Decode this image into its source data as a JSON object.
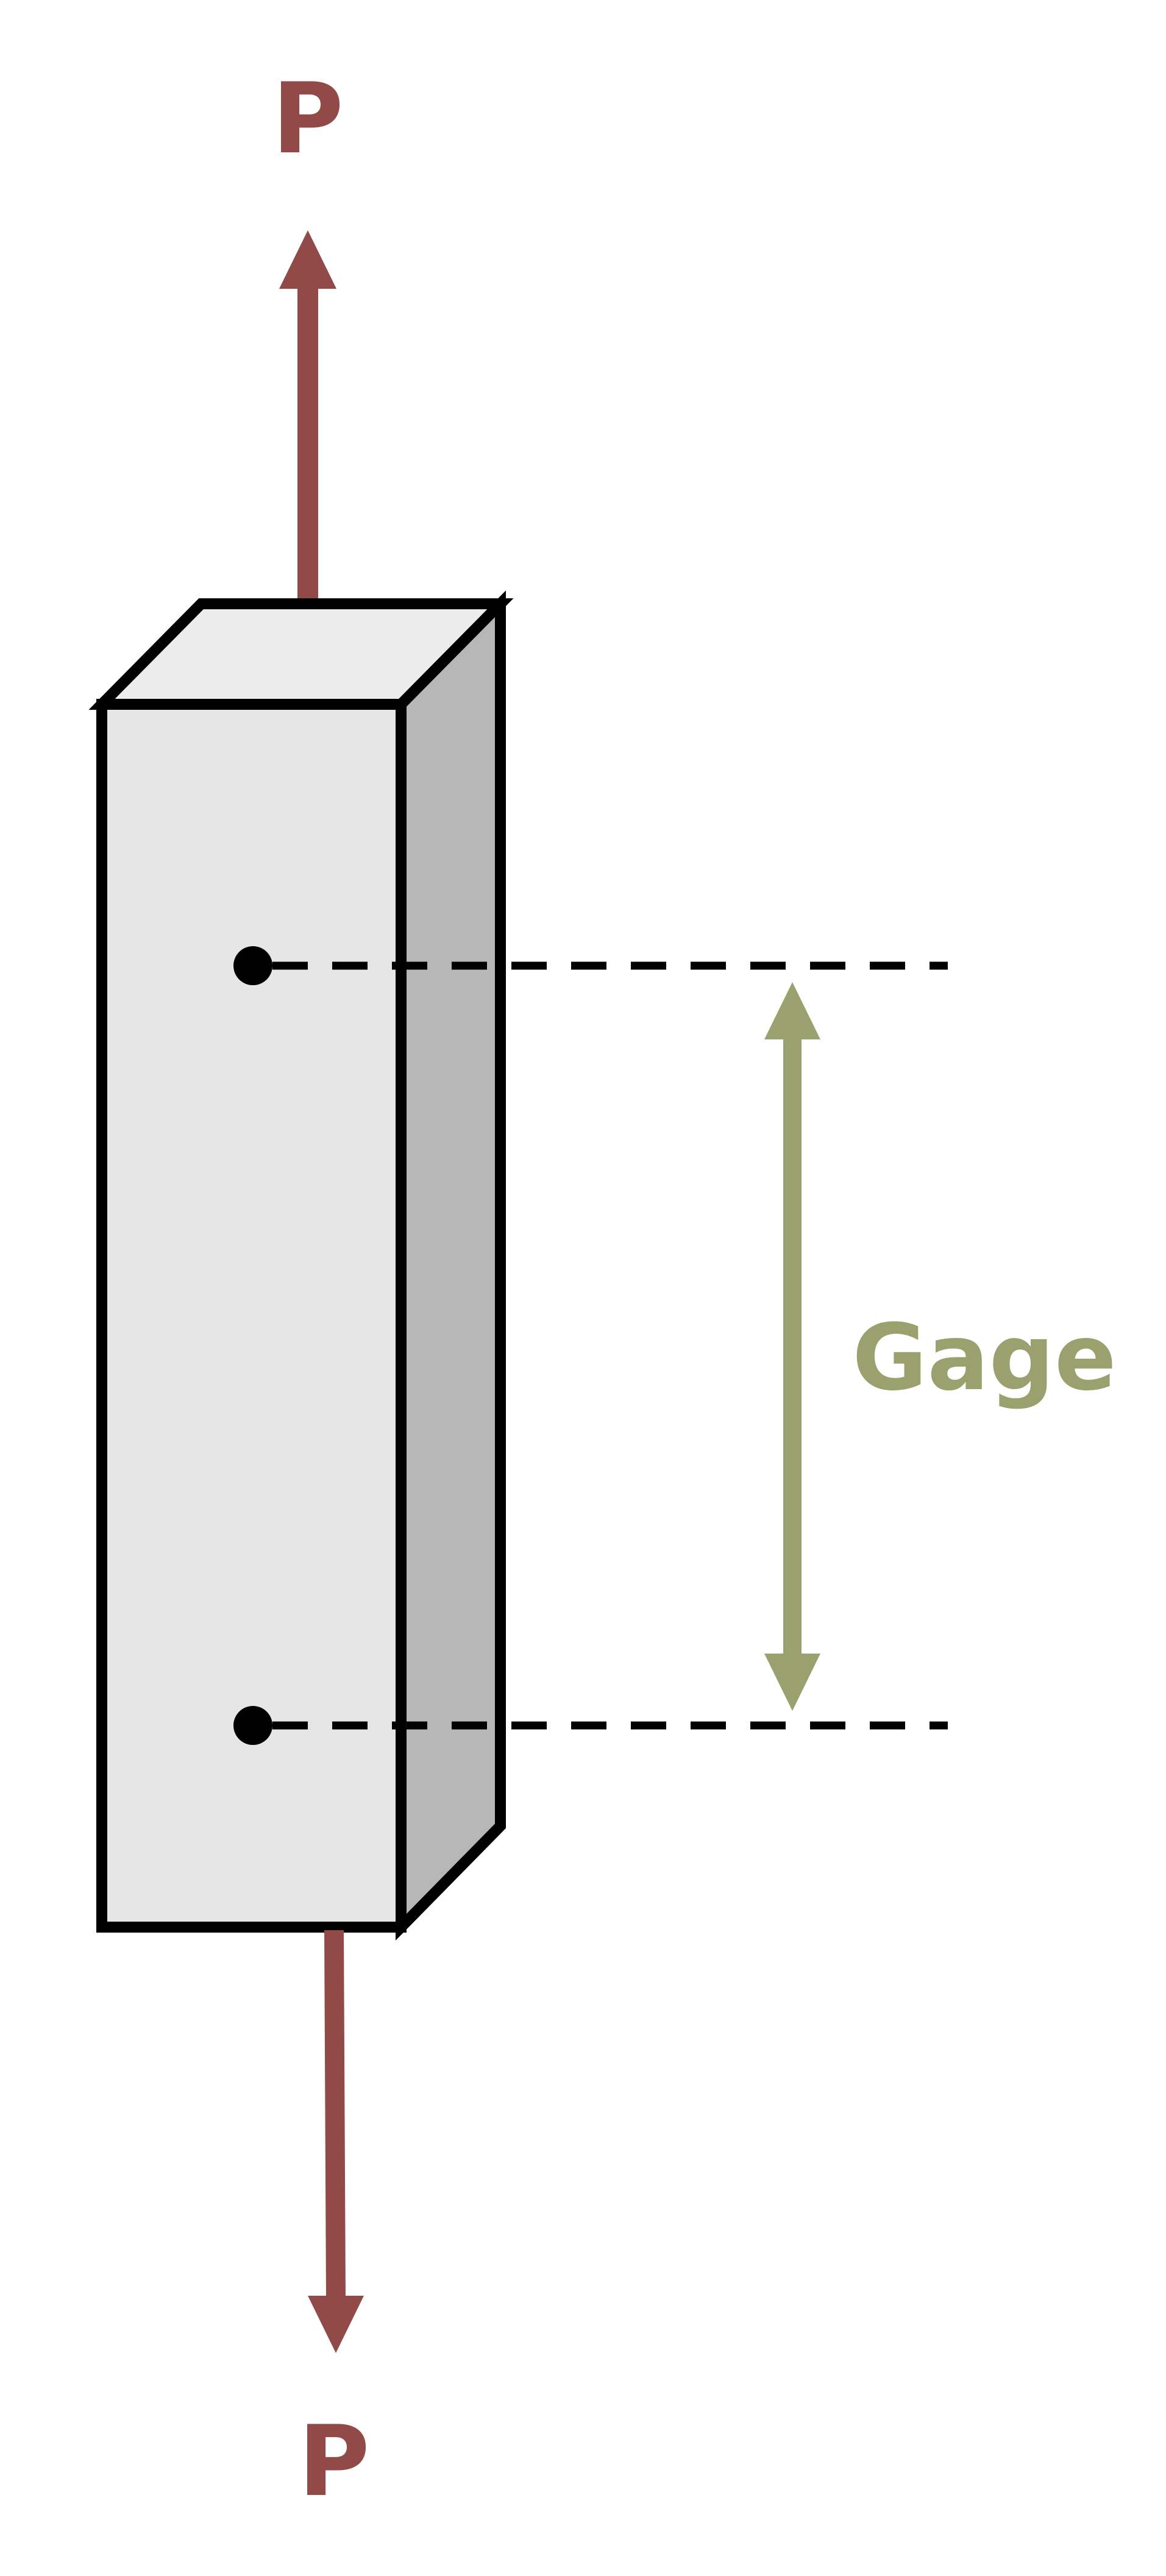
{
  "labels": {
    "load_top": "P",
    "load_bottom": "P",
    "gage": "Gage"
  },
  "colors": {
    "load_arrow": "#914a47",
    "gage_arrow": "#9aa16f",
    "outline": "#000000",
    "front_face": "#e6e6e6",
    "top_face": "#ececec",
    "side_face": "#b7b7b7",
    "background": "#ffffff"
  },
  "icons": {
    "load_arrow": "arrow-up-icon",
    "load_arrow_bottom": "arrow-down-icon",
    "gage_arrow": "double-arrow-icon"
  }
}
